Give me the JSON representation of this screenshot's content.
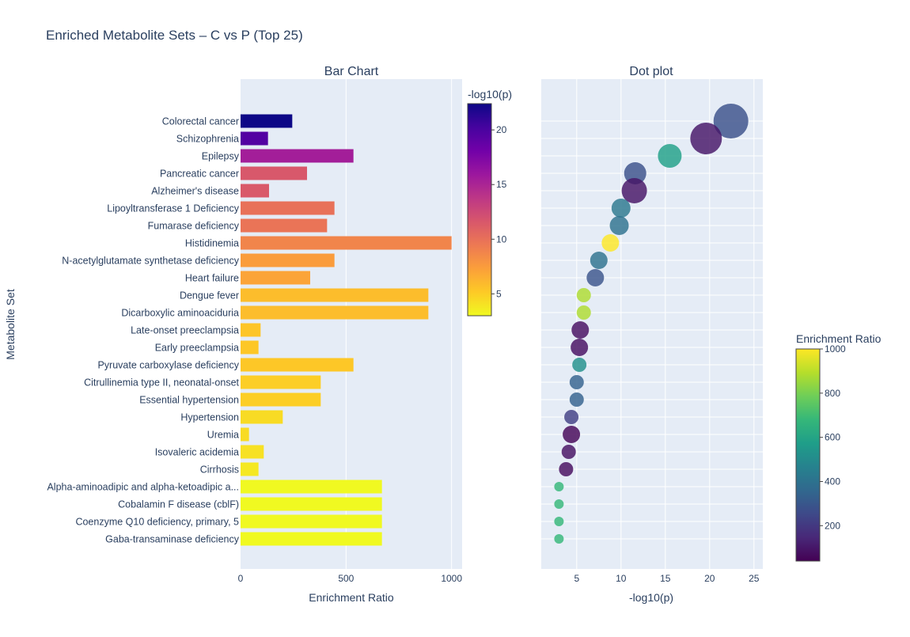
{
  "chart_data": {
    "title": "Enriched Metabolite Sets – C vs P (Top 25)",
    "ylabel": "Metabolite Set",
    "categories": [
      "Colorectal cancer",
      "Schizophrenia",
      "Epilepsy",
      "Pancreatic cancer",
      "Alzheimer's disease",
      "Lipoyltransferase 1 Deficiency",
      "Fumarase deficiency",
      "Histidinemia",
      "N-acetylglutamate synthetase deficiency",
      "Heart failure",
      "Dengue fever",
      "Dicarboxylic aminoaciduria",
      "Late-onset preeclampsia",
      "Early preeclampsia",
      "Pyruvate carboxylase deficiency",
      "Citrullinemia type II, neonatal-onset",
      "Essential hypertension",
      "Hypertension",
      "Uremia",
      "Isovaleric acidemia",
      "Cirrhosis",
      "Alpha-aminoadipic and alpha-ketoadipic a...",
      "Cobalamin F disease (cblF)",
      "Coenzyme Q10 deficiency, primary, 5",
      "Gaba-transaminase deficiency"
    ],
    "enrichment_ratio": [
      245,
      130,
      535,
      315,
      135,
      445,
      410,
      1000,
      445,
      330,
      890,
      890,
      95,
      85,
      535,
      380,
      380,
      200,
      40,
      110,
      85,
      670,
      670,
      670,
      670
    ],
    "neg_log10_p": [
      22.4,
      19.6,
      15.5,
      11.6,
      11.5,
      10.0,
      9.8,
      8.8,
      7.5,
      7.1,
      5.8,
      5.8,
      5.4,
      5.3,
      5.3,
      5.0,
      5.0,
      4.4,
      4.4,
      4.1,
      3.8,
      3.0,
      3.0,
      3.0,
      3.0
    ],
    "dot_enrichment": [
      280,
      95,
      580,
      280,
      90,
      420,
      400,
      1000,
      400,
      290,
      880,
      880,
      75,
      75,
      520,
      340,
      340,
      220,
      50,
      80,
      70,
      680,
      680,
      680,
      680
    ],
    "dot_size": [
      22,
      20,
      15,
      14,
      16,
      12,
      12,
      11,
      11,
      11,
      9,
      9,
      11,
      11,
      9,
      9,
      9,
      9,
      11,
      9,
      9,
      6,
      6,
      6,
      6
    ],
    "subplots": [
      {
        "type": "bar",
        "subtitle": "Bar Chart",
        "xlabel": "Enrichment Ratio",
        "xlim": [
          0,
          1050
        ],
        "xticks": [
          0,
          500,
          1000
        ],
        "xtick_labels": [
          "0",
          "500",
          "1000"
        ],
        "color_by": "-log10(p)",
        "colorscale": "plasma",
        "colorbar_title": "-log10(p)",
        "colorbar_range": [
          3,
          22.4
        ],
        "colorbar_ticks": [
          5,
          10,
          15,
          20
        ],
        "colorbar_tick_labels": [
          "5",
          "10",
          "15",
          "20"
        ]
      },
      {
        "type": "scatter",
        "subtitle": "Dot plot",
        "xlabel": "-log10(p)",
        "xlim": [
          1,
          26
        ],
        "xticks": [
          5,
          10,
          15,
          20,
          25
        ],
        "xtick_labels": [
          "5",
          "10",
          "15",
          "20",
          "25"
        ],
        "color_by": "Enrichment Ratio",
        "colorscale": "viridis",
        "colorbar_title": "Enrichment Ratio",
        "colorbar_range": [
          40,
          1000
        ],
        "colorbar_ticks": [
          200,
          400,
          600,
          800,
          1000
        ],
        "colorbar_tick_labels": [
          "200",
          "400",
          "600",
          "800",
          "1000"
        ]
      }
    ],
    "grid": true,
    "plot_bgcolor": "#e5ecf6"
  }
}
